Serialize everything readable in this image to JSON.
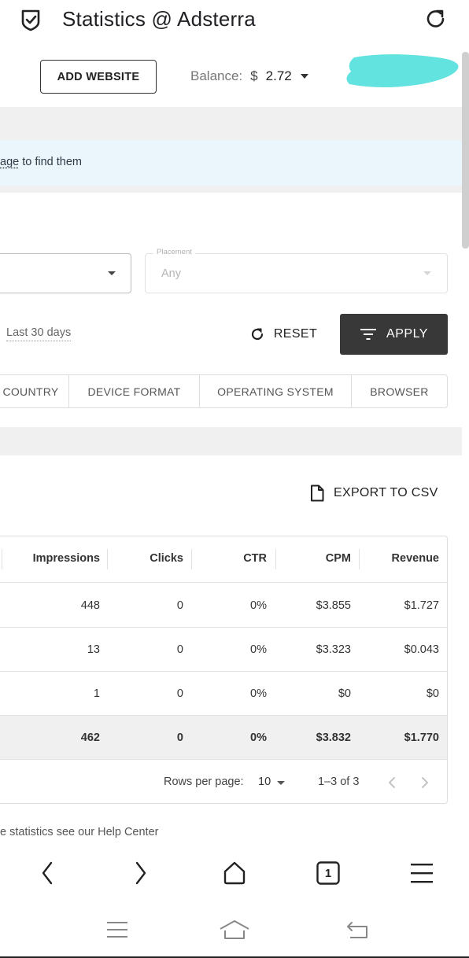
{
  "topbar": {
    "title": "Statistics @ Adsterra",
    "icons": {
      "logo": "shield-check-icon",
      "reload": "reload-icon"
    }
  },
  "header": {
    "add_website_label": "ADD WEBSITE",
    "balance_label": "Balance:",
    "balance_currency": "$",
    "balance_value": "2.72"
  },
  "banner": {
    "text_prefix": "age",
    "text_suffix": " to find them"
  },
  "filters": {
    "left_select_value": "",
    "placement": {
      "label": "Placement",
      "value": "Any"
    },
    "date_range": "Last 30 days",
    "reset_label": "RESET",
    "apply_label": "APPLY"
  },
  "tabs": [
    "COUNTRY",
    "DEVICE FORMAT",
    "OPERATING SYSTEM",
    "BROWSER"
  ],
  "export_label": "EXPORT TO CSV",
  "table": {
    "columns": [
      "Impressions",
      "Clicks",
      "CTR",
      "CPM",
      "Revenue"
    ],
    "rows": [
      [
        "448",
        "0",
        "0%",
        "$3.855",
        "$1.727"
      ],
      [
        "13",
        "0",
        "0%",
        "$3.323",
        "$0.043"
      ],
      [
        "1",
        "0",
        "0%",
        "$0",
        "$0"
      ]
    ],
    "total": [
      "462",
      "0",
      "0%",
      "$3.832",
      "$1.770"
    ],
    "footer": {
      "rows_per_page_label": "Rows per page:",
      "rows_per_page_value": "10",
      "range": "1–3 of 3"
    }
  },
  "help_text": "e statistics see our Help Center",
  "browser_nav": {
    "tab_count": "1"
  },
  "colors": {
    "apply_bg": "#383838",
    "banner_bg": "#eaf6fb",
    "redaction": "#63e3e0"
  }
}
